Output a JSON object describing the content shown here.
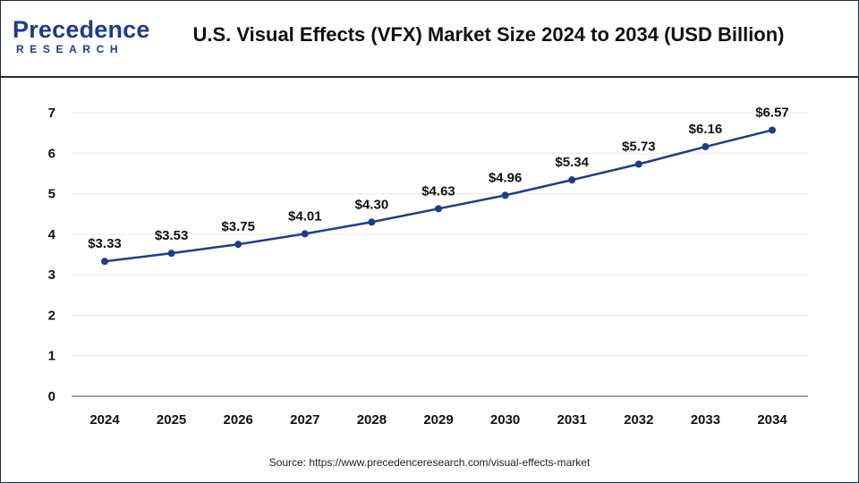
{
  "header": {
    "logo_main": "Precedence",
    "logo_sub": "RESEARCH",
    "title": "U.S. Visual Effects (VFX) Market Size 2024 to 2034 (USD Billion)"
  },
  "source": "Source: https://www.precedenceresearch.com/visual-effects-market",
  "colors": {
    "line": "#1f3b8c",
    "grid": "#e6e6e6",
    "axis": "#8c8c8c",
    "text": "#111111"
  },
  "chart_data": {
    "type": "line",
    "title": "U.S. Visual Effects (VFX) Market Size 2024 to 2034 (USD Billion)",
    "xlabel": "",
    "ylabel": "",
    "x": [
      "2024",
      "2025",
      "2026",
      "2027",
      "2028",
      "2029",
      "2030",
      "2031",
      "2032",
      "2033",
      "2034"
    ],
    "values": [
      3.33,
      3.53,
      3.75,
      4.01,
      4.3,
      4.63,
      4.96,
      5.34,
      5.73,
      6.16,
      6.57
    ],
    "labels": [
      "$3.33",
      "$3.53",
      "$3.75",
      "$4.01",
      "$4.30",
      "$4.63",
      "$4.96",
      "$5.34",
      "$5.73",
      "$6.16",
      "$6.57"
    ],
    "yticks": [
      "0",
      "1",
      "2",
      "3",
      "4",
      "5",
      "6",
      "7"
    ],
    "ylim": [
      0,
      7
    ],
    "grid": true
  }
}
